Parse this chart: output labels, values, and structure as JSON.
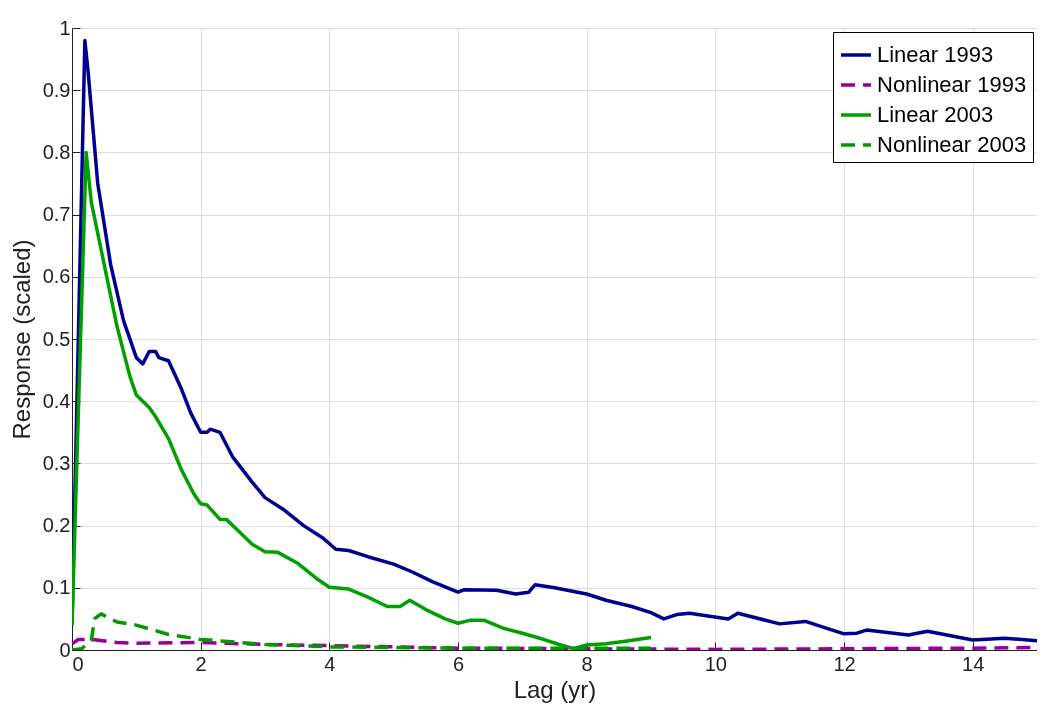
{
  "chart_data": {
    "type": "line",
    "xlabel": "Lag (yr)",
    "ylabel": "Response (scaled)",
    "xlim": [
      0,
      15
    ],
    "ylim": [
      0,
      1
    ],
    "xticks": [
      0,
      2,
      4,
      6,
      8,
      10,
      12,
      14
    ],
    "yticks": [
      0,
      0.1,
      0.2,
      0.3,
      0.4,
      0.5,
      0.6,
      0.7,
      0.8,
      0.9,
      1
    ],
    "grid": true,
    "legend": "top right",
    "series": [
      {
        "name": "Linear 1993",
        "color": "#00008f",
        "line_style": "solid",
        "x": [
          0,
          0.2,
          0.25,
          0.4,
          0.6,
          0.8,
          1.0,
          1.1,
          1.2,
          1.3,
          1.35,
          1.5,
          1.7,
          1.85,
          2.0,
          2.1,
          2.15,
          2.3,
          2.5,
          2.8,
          3.0,
          3.3,
          3.6,
          3.9,
          4.1,
          4.3,
          4.6,
          5.0,
          5.3,
          5.6,
          6.0,
          6.1,
          6.6,
          6.9,
          7.1,
          7.2,
          7.5,
          7.8,
          8.0,
          8.3,
          8.7,
          9.0,
          9.2,
          9.4,
          9.6,
          10.2,
          10.35,
          11.0,
          11.4,
          12.0,
          12.2,
          12.35,
          13.0,
          13.3,
          14.0,
          14.5,
          15
        ],
        "values": [
          0.04,
          0.98,
          0.93,
          0.75,
          0.62,
          0.53,
          0.47,
          0.46,
          0.48,
          0.48,
          0.47,
          0.465,
          0.42,
          0.38,
          0.35,
          0.35,
          0.355,
          0.35,
          0.31,
          0.27,
          0.245,
          0.225,
          0.2,
          0.18,
          0.162,
          0.16,
          0.15,
          0.138,
          0.125,
          0.11,
          0.093,
          0.097,
          0.096,
          0.09,
          0.093,
          0.105,
          0.1,
          0.094,
          0.09,
          0.08,
          0.07,
          0.06,
          0.05,
          0.057,
          0.059,
          0.05,
          0.059,
          0.042,
          0.046,
          0.026,
          0.027,
          0.032,
          0.024,
          0.03,
          0.016,
          0.019,
          0.015
        ]
      },
      {
        "name": "Nonlinear 1993",
        "color": "#990099",
        "line_style": "dashed",
        "x": [
          0,
          0.1,
          0.3,
          0.7,
          1,
          2,
          3,
          4,
          6,
          8,
          10,
          12,
          14,
          15
        ],
        "values": [
          0.01,
          0.017,
          0.017,
          0.012,
          0.011,
          0.012,
          0.009,
          0.007,
          0.003,
          0.002,
          0.001,
          0.002,
          0.003,
          0.004
        ]
      },
      {
        "name": "Linear 2003",
        "color": "#00a000",
        "line_style": "solid",
        "x": [
          0,
          0.22,
          0.3,
          0.5,
          0.7,
          0.9,
          1.0,
          1.2,
          1.3,
          1.5,
          1.7,
          1.9,
          2.0,
          2.1,
          2.3,
          2.4,
          2.6,
          2.8,
          3.0,
          3.2,
          3.5,
          3.8,
          4.0,
          4.3,
          4.6,
          4.9,
          5.1,
          5.25,
          5.5,
          5.8,
          6.0,
          6.2,
          6.4,
          6.7,
          7.0,
          7.3,
          7.6,
          7.8,
          8.0,
          8.3,
          8.6,
          9.0
        ],
        "values": [
          0.04,
          0.8,
          0.72,
          0.62,
          0.52,
          0.44,
          0.41,
          0.39,
          0.375,
          0.34,
          0.29,
          0.25,
          0.235,
          0.233,
          0.21,
          0.21,
          0.19,
          0.17,
          0.158,
          0.157,
          0.14,
          0.115,
          0.101,
          0.098,
          0.085,
          0.07,
          0.07,
          0.08,
          0.065,
          0.05,
          0.043,
          0.048,
          0.048,
          0.035,
          0.027,
          0.018,
          0.008,
          0.002,
          0.008,
          0.01,
          0.014,
          0.02
        ]
      },
      {
        "name": "Nonlinear 2003",
        "color": "#009900",
        "line_style": "dashed",
        "x": [
          0,
          0.15,
          0.3,
          0.35,
          0.45,
          0.7,
          1.0,
          1.5,
          2,
          3,
          4,
          6,
          8,
          9
        ],
        "values": [
          0,
          0.002,
          0.015,
          0.05,
          0.058,
          0.045,
          0.04,
          0.025,
          0.017,
          0.009,
          0.005,
          0.003,
          0.003,
          0.003
        ]
      }
    ]
  }
}
